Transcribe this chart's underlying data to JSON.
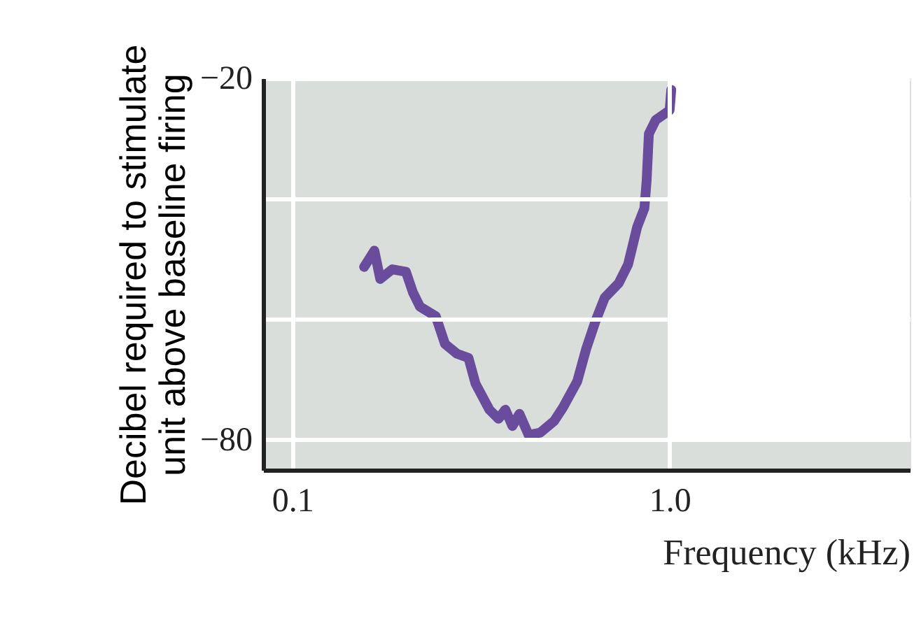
{
  "chart_data": {
    "type": "line",
    "xlabel": "Frequency (kHz)",
    "ylabel": "Decibel required to stimulate\nunit above baseline firing",
    "log": "x",
    "xlim": [
      0.0837,
      4.33
    ],
    "xticks": [
      0.1,
      {
        "value": 1,
        "label": "1.0"
      }
    ],
    "ylim": [
      -85,
      -20
    ],
    "yticks": [
      -20,
      {
        "value": -40,
        "label": null
      },
      {
        "value": -60,
        "label": null
      },
      -80
    ],
    "grid": true,
    "line_style": "solid",
    "marker": "none",
    "bands": [
      {
        "axis": "x",
        "from": 0.0837,
        "to": 1.0,
        "color": "#d9dedb"
      },
      {
        "axis": "y",
        "from": -85,
        "to": -80,
        "color": "#d9dedb"
      }
    ],
    "series": [
      {
        "color": "#6a4c9c",
        "x": [
          0.155,
          0.165,
          0.171,
          0.184,
          0.2,
          0.209,
          0.218,
          0.24,
          0.254,
          0.273,
          0.293,
          0.306,
          0.333,
          0.352,
          0.367,
          0.383,
          0.4,
          0.423,
          0.454,
          0.494,
          0.522,
          0.569,
          0.601,
          0.637,
          0.673,
          0.733,
          0.776,
          0.82,
          0.857,
          0.869,
          0.881,
          0.919,
          1.0,
          1.01
        ],
        "values": [
          -51.3,
          -48.6,
          -53.3,
          -51.7,
          -52.1,
          -55.6,
          -57.9,
          -59.5,
          -64.1,
          -65.7,
          -66.4,
          -70.7,
          -75,
          -76.5,
          -75,
          -77.7,
          -75.7,
          -79.2,
          -78.8,
          -76.9,
          -74.6,
          -70.3,
          -64.9,
          -60.2,
          -56.4,
          -54,
          -50.9,
          -44.7,
          -41.6,
          -37,
          -29.2,
          -26.9,
          -25.3,
          -21.9
        ]
      }
    ]
  }
}
